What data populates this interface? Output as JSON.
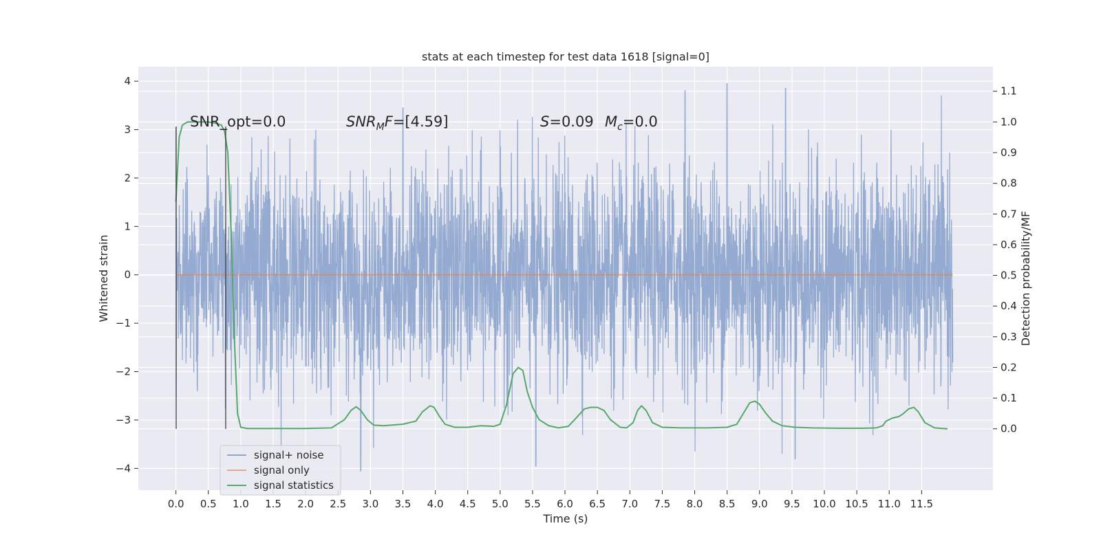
{
  "chart_data": {
    "type": "line",
    "title": "stats at each timestep for test data 1618 [signal=0]",
    "xlabel": "Time (s)",
    "ylabel": "Whitened strain",
    "ylabel_right": "Detection probability/MF",
    "xlim": [
      -0.58,
      12.6
    ],
    "ylim": [
      -4.45,
      4.3
    ],
    "ylim_right": [
      -0.2,
      1.18
    ],
    "x_ticks": [
      "0.0",
      "0.5",
      "1.0",
      "1.5",
      "2.0",
      "2.5",
      "3.0",
      "3.5",
      "4.0",
      "4.5",
      "5.0",
      "5.5",
      "6.0",
      "6.5",
      "7.0",
      "7.5",
      "8.0",
      "8.5",
      "9.0",
      "9.5",
      "10.0",
      "10.5",
      "11.0",
      "11.5"
    ],
    "y_ticks_left": [
      "−4",
      "−3",
      "−2",
      "−1",
      "0",
      "1",
      "2",
      "3",
      "4"
    ],
    "y_ticks_right": [
      "0.0",
      "0.1",
      "0.2",
      "0.3",
      "0.4",
      "0.5",
      "0.6",
      "0.7",
      "0.8",
      "0.9",
      "1.0",
      "1.1"
    ],
    "grid": true,
    "legend_position": "lower-left",
    "annotations": {
      "snr_opt": "SNR_opt=0.0",
      "snr_mf_name": "SNR",
      "snr_mf_sub": "M",
      "snr_mf_f": "F",
      "snr_mf_value": "=[4.59]",
      "s_sym": "S",
      "s_value": "=0.09",
      "mc_sym": "M",
      "mc_sub": "c",
      "mc_value": "=0.0"
    },
    "series": [
      {
        "name": "signal+ noise",
        "color": "#8fa6cd",
        "axis": "left",
        "x_range": [
          0.0,
          11.98
        ],
        "notable_peaks": [
          [
            0.0,
            3.05
          ],
          [
            2.85,
            -4.05
          ],
          [
            3.5,
            3.45
          ],
          [
            5.55,
            -3.95
          ],
          [
            7.85,
            3.8
          ],
          [
            8.5,
            3.95
          ],
          [
            9.4,
            3.85
          ],
          [
            9.55,
            -3.8
          ]
        ]
      },
      {
        "name": "signal only",
        "color": "#dd8452",
        "axis": "left",
        "x": [
          0.0,
          11.98
        ],
        "y": [
          0.0,
          0.0
        ]
      },
      {
        "name": "signal statistics",
        "color": "#55a868",
        "axis": "right",
        "x": [
          0.0,
          0.05,
          0.1,
          0.18,
          0.3,
          0.5,
          0.62,
          0.7,
          0.75,
          0.8,
          0.85,
          0.9,
          0.95,
          1.0,
          1.1,
          1.5,
          2.0,
          2.4,
          2.6,
          2.7,
          2.78,
          2.85,
          2.95,
          3.05,
          3.2,
          3.5,
          3.7,
          3.8,
          3.92,
          3.98,
          4.05,
          4.15,
          4.3,
          4.5,
          4.7,
          4.9,
          5.0,
          5.1,
          5.2,
          5.28,
          5.35,
          5.42,
          5.5,
          5.6,
          5.75,
          5.9,
          6.05,
          6.15,
          6.3,
          6.4,
          6.5,
          6.6,
          6.7,
          6.85,
          6.95,
          7.05,
          7.12,
          7.18,
          7.25,
          7.35,
          7.5,
          7.8,
          8.2,
          8.5,
          8.65,
          8.75,
          8.85,
          8.93,
          9.0,
          9.1,
          9.2,
          9.35,
          9.55,
          9.8,
          10.2,
          10.6,
          10.8,
          10.9,
          10.95,
          11.05,
          11.15,
          11.22,
          11.3,
          11.38,
          11.45,
          11.55,
          11.7,
          11.9
        ],
        "y": [
          0.74,
          0.95,
          0.99,
          1.0,
          1.0,
          1.0,
          0.995,
          0.99,
          0.97,
          0.9,
          0.65,
          0.3,
          0.05,
          0.005,
          0.001,
          0.001,
          0.001,
          0.003,
          0.03,
          0.06,
          0.072,
          0.06,
          0.03,
          0.012,
          0.01,
          0.015,
          0.025,
          0.055,
          0.075,
          0.07,
          0.045,
          0.015,
          0.005,
          0.005,
          0.01,
          0.008,
          0.015,
          0.08,
          0.18,
          0.2,
          0.19,
          0.12,
          0.07,
          0.03,
          0.01,
          0.003,
          0.008,
          0.03,
          0.065,
          0.07,
          0.07,
          0.06,
          0.03,
          0.005,
          0.003,
          0.02,
          0.06,
          0.075,
          0.06,
          0.02,
          0.005,
          0.003,
          0.003,
          0.005,
          0.015,
          0.05,
          0.085,
          0.09,
          0.08,
          0.05,
          0.025,
          0.01,
          0.005,
          0.003,
          0.002,
          0.002,
          0.003,
          0.01,
          0.025,
          0.035,
          0.04,
          0.05,
          0.065,
          0.07,
          0.055,
          0.02,
          0.003,
          0.0
        ]
      }
    ]
  }
}
